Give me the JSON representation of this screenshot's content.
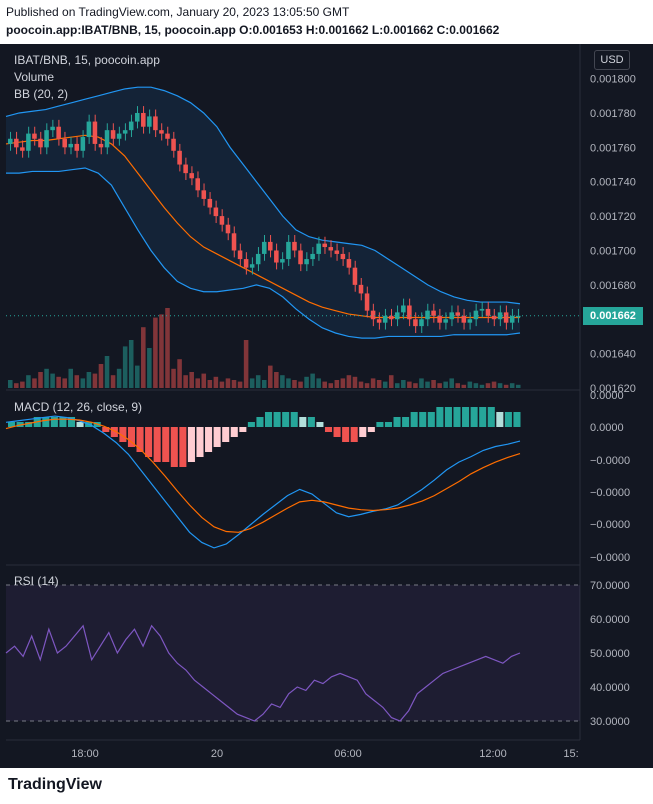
{
  "header": {
    "published": "Published on TradingView.com, January 20, 2023 13:05:50 GMT",
    "symbol_line": "poocoin.app:IBAT/BNB, 15, poocoin.app",
    "ohlc": "O:0.001653 H:0.001662 L:0.001662 C:0.001662"
  },
  "legend": {
    "title": "IBAT/BNB, 15, poocoin.app",
    "volume": "Volume",
    "bb": "BB (20, 2)",
    "macd": "MACD (12, 26, close, 9)",
    "rsi": "RSI (14)"
  },
  "currency": "USD",
  "last_price": "0.001662",
  "footer": {
    "brand": "TradingView"
  },
  "colors": {
    "up": "#26a69a",
    "down": "#ef5350",
    "bb": "#2196f3",
    "basis": "#ff6d00",
    "rsi": "#7e57c2",
    "background": "#131722"
  },
  "chart_data": [
    {
      "type": "candlestick",
      "title": "IBAT/BNB, 15, poocoin.app",
      "ylim": [
        0.00162,
        0.001805
      ],
      "y_ticks": [
        "0.001800",
        "0.001780",
        "0.001760",
        "0.001740",
        "0.001720",
        "0.001700",
        "0.001680",
        "0.001640",
        "0.001620"
      ],
      "x_ticks": [
        "18:00",
        "20",
        "06:00",
        "12:00",
        "15:"
      ],
      "close": [
        0.001765,
        0.00176,
        0.001758,
        0.001768,
        0.001765,
        0.00176,
        0.00177,
        0.001772,
        0.001765,
        0.00176,
        0.001762,
        0.001758,
        0.001766,
        0.001775,
        0.001762,
        0.00176,
        0.00177,
        0.001765,
        0.001768,
        0.00177,
        0.001775,
        0.00178,
        0.001772,
        0.001778,
        0.00177,
        0.001768,
        0.001765,
        0.001758,
        0.00175,
        0.001745,
        0.001742,
        0.001735,
        0.00173,
        0.001725,
        0.00172,
        0.001715,
        0.00171,
        0.0017,
        0.001695,
        0.00169,
        0.001692,
        0.001698,
        0.001705,
        0.0017,
        0.001693,
        0.001695,
        0.001705,
        0.0017,
        0.001692,
        0.001695,
        0.001698,
        0.001704,
        0.001702,
        0.0017,
        0.001698,
        0.001695,
        0.00169,
        0.00168,
        0.001675,
        0.001665,
        0.00166,
        0.001658,
        0.001662,
        0.00166,
        0.001664,
        0.001668,
        0.00166,
        0.001656,
        0.00166,
        0.001665,
        0.001662,
        0.001658,
        0.00166,
        0.001664,
        0.001662,
        0.001658,
        0.00166,
        0.001665,
        0.001666,
        0.001662,
        0.00166,
        0.001664,
        0.001658,
        0.001662,
        0.001662
      ],
      "bb_upper": [
        0.001778,
        0.00178,
        0.001781,
        0.001782,
        0.001784,
        0.001786,
        0.001788,
        0.00179,
        0.001792,
        0.001794,
        0.001795,
        0.001795,
        0.001793,
        0.00179,
        0.001786,
        0.00178,
        0.001772,
        0.00176,
        0.00175,
        0.00174,
        0.00173,
        0.00172,
        0.001712,
        0.001708,
        0.001706,
        0.001705,
        0.001704,
        0.001703,
        0.0017,
        0.001695,
        0.00169,
        0.001685,
        0.00168,
        0.001676,
        0.001673,
        0.001671,
        0.00167,
        0.00167,
        0.00167,
        0.001669
      ],
      "bb_lower": [
        0.001745,
        0.001745,
        0.001746,
        0.001746,
        0.001746,
        0.001747,
        0.001748,
        0.001745,
        0.001738,
        0.001725,
        0.001712,
        0.0017,
        0.00169,
        0.001682,
        0.001678,
        0.001676,
        0.001676,
        0.001677,
        0.001678,
        0.00168,
        0.001678,
        0.001673,
        0.001666,
        0.00166,
        0.001655,
        0.001652,
        0.00165,
        0.001649,
        0.001649,
        0.00165,
        0.00165,
        0.00165,
        0.00165,
        0.00165,
        0.001651,
        0.001651,
        0.001651,
        0.001651,
        0.001651,
        0.001652
      ],
      "bb_basis": [
        0.001762,
        0.001763,
        0.001764,
        0.001764,
        0.001765,
        0.001766,
        0.001767,
        0.001766,
        0.001762,
        0.001755,
        0.001745,
        0.001735,
        0.001725,
        0.001716,
        0.001708,
        0.001702,
        0.001698,
        0.001694,
        0.00169,
        0.001686,
        0.001682,
        0.001678,
        0.001674,
        0.00167,
        0.001667,
        0.001665,
        0.001663,
        0.001662,
        0.001661,
        0.001661,
        0.001661,
        0.001661,
        0.001661,
        0.001661,
        0.001661,
        0.001661,
        0.001661,
        0.001661,
        0.001661,
        0.001661
      ],
      "volume": [
        5,
        3,
        4,
        8,
        6,
        10,
        12,
        9,
        7,
        6,
        12,
        8,
        6,
        10,
        9,
        15,
        20,
        8,
        12,
        26,
        30,
        14,
        38,
        25,
        44,
        46,
        50,
        12,
        18,
        8,
        10,
        6,
        9,
        5,
        7,
        4,
        6,
        5,
        4,
        30,
        6,
        8,
        5,
        14,
        10,
        8,
        6,
        5,
        4,
        7,
        9,
        6,
        4,
        3,
        5,
        6,
        8,
        7,
        4,
        3,
        6,
        5,
        4,
        8,
        3,
        5,
        4,
        3,
        6,
        4,
        5,
        3,
        4,
        6,
        3,
        2,
        4,
        3,
        2,
        3,
        4,
        3,
        2,
        3,
        2
      ]
    },
    {
      "type": "bar",
      "title": "MACD (12, 26, close, 9)",
      "y_ticks": [
        "0.0000",
        "0.0000",
        "−0.0000",
        "−0.0000",
        "−0.0000",
        "−0.0000"
      ],
      "histogram": [
        1,
        1,
        1,
        2,
        2,
        2,
        2,
        2,
        1,
        1,
        1,
        -1,
        -2,
        -3,
        -4,
        -5,
        -6,
        -7,
        -7,
        -8,
        -8,
        -7,
        -6,
        -5,
        -4,
        -3,
        -2,
        -1,
        1,
        2,
        3,
        3,
        3,
        3,
        2,
        2,
        1,
        -1,
        -2,
        -3,
        -3,
        -2,
        -1,
        1,
        1,
        2,
        2,
        3,
        3,
        3,
        4,
        4,
        4,
        4,
        4,
        4,
        4,
        3,
        3,
        3
      ],
      "macd": [
        0.6,
        0.8,
        1.0,
        1.2,
        1.4,
        1.2,
        0.8,
        0.2,
        -0.8,
        -2.0,
        -3.5,
        -5.5,
        -7.5,
        -9.5,
        -11.5,
        -13.5,
        -14.8,
        -15.5,
        -15.0,
        -13.8,
        -12.5,
        -11.2,
        -10.0,
        -8.8,
        -8.0,
        -8.6,
        -9.8,
        -11.0,
        -11.5,
        -11.2,
        -10.8,
        -10.5,
        -10.0,
        -9.0,
        -8.0,
        -6.8,
        -5.5,
        -4.5,
        -3.8,
        -3.0,
        -2.5,
        -2.2,
        -1.8
      ],
      "signal": [
        -0.2,
        0.2,
        0.5,
        0.8,
        1.0,
        1.0,
        0.9,
        0.6,
        0.1,
        -0.6,
        -1.6,
        -2.9,
        -4.5,
        -6.3,
        -8.2,
        -10.0,
        -11.6,
        -12.8,
        -13.4,
        -13.5,
        -13.0,
        -12.2,
        -11.3,
        -10.4,
        -9.6,
        -9.4,
        -9.6,
        -10.0,
        -10.4,
        -10.6,
        -10.7,
        -10.6,
        -10.4,
        -10.0,
        -9.5,
        -8.8,
        -7.9,
        -7.0,
        -6.0,
        -5.2,
        -4.5,
        -3.9,
        -3.4
      ]
    },
    {
      "type": "line",
      "title": "RSI (14)",
      "ylim": [
        25,
        75
      ],
      "y_ticks": [
        "70.0000",
        "60.0000",
        "50.0000",
        "40.0000",
        "30.0000"
      ],
      "levels": [
        70,
        30
      ],
      "values": [
        50,
        52,
        49,
        55,
        48,
        57,
        50,
        52,
        55,
        58,
        48,
        52,
        56,
        50,
        54,
        57,
        52,
        58,
        55,
        50,
        47,
        45,
        42,
        40,
        38,
        36,
        34,
        32,
        31,
        30,
        32,
        35,
        34,
        38,
        40,
        39,
        42,
        41,
        43,
        44,
        43,
        42,
        38,
        36,
        34,
        31,
        30,
        33,
        38,
        40,
        42,
        44,
        45,
        46,
        47,
        48,
        49,
        48,
        47,
        49,
        50
      ]
    }
  ]
}
